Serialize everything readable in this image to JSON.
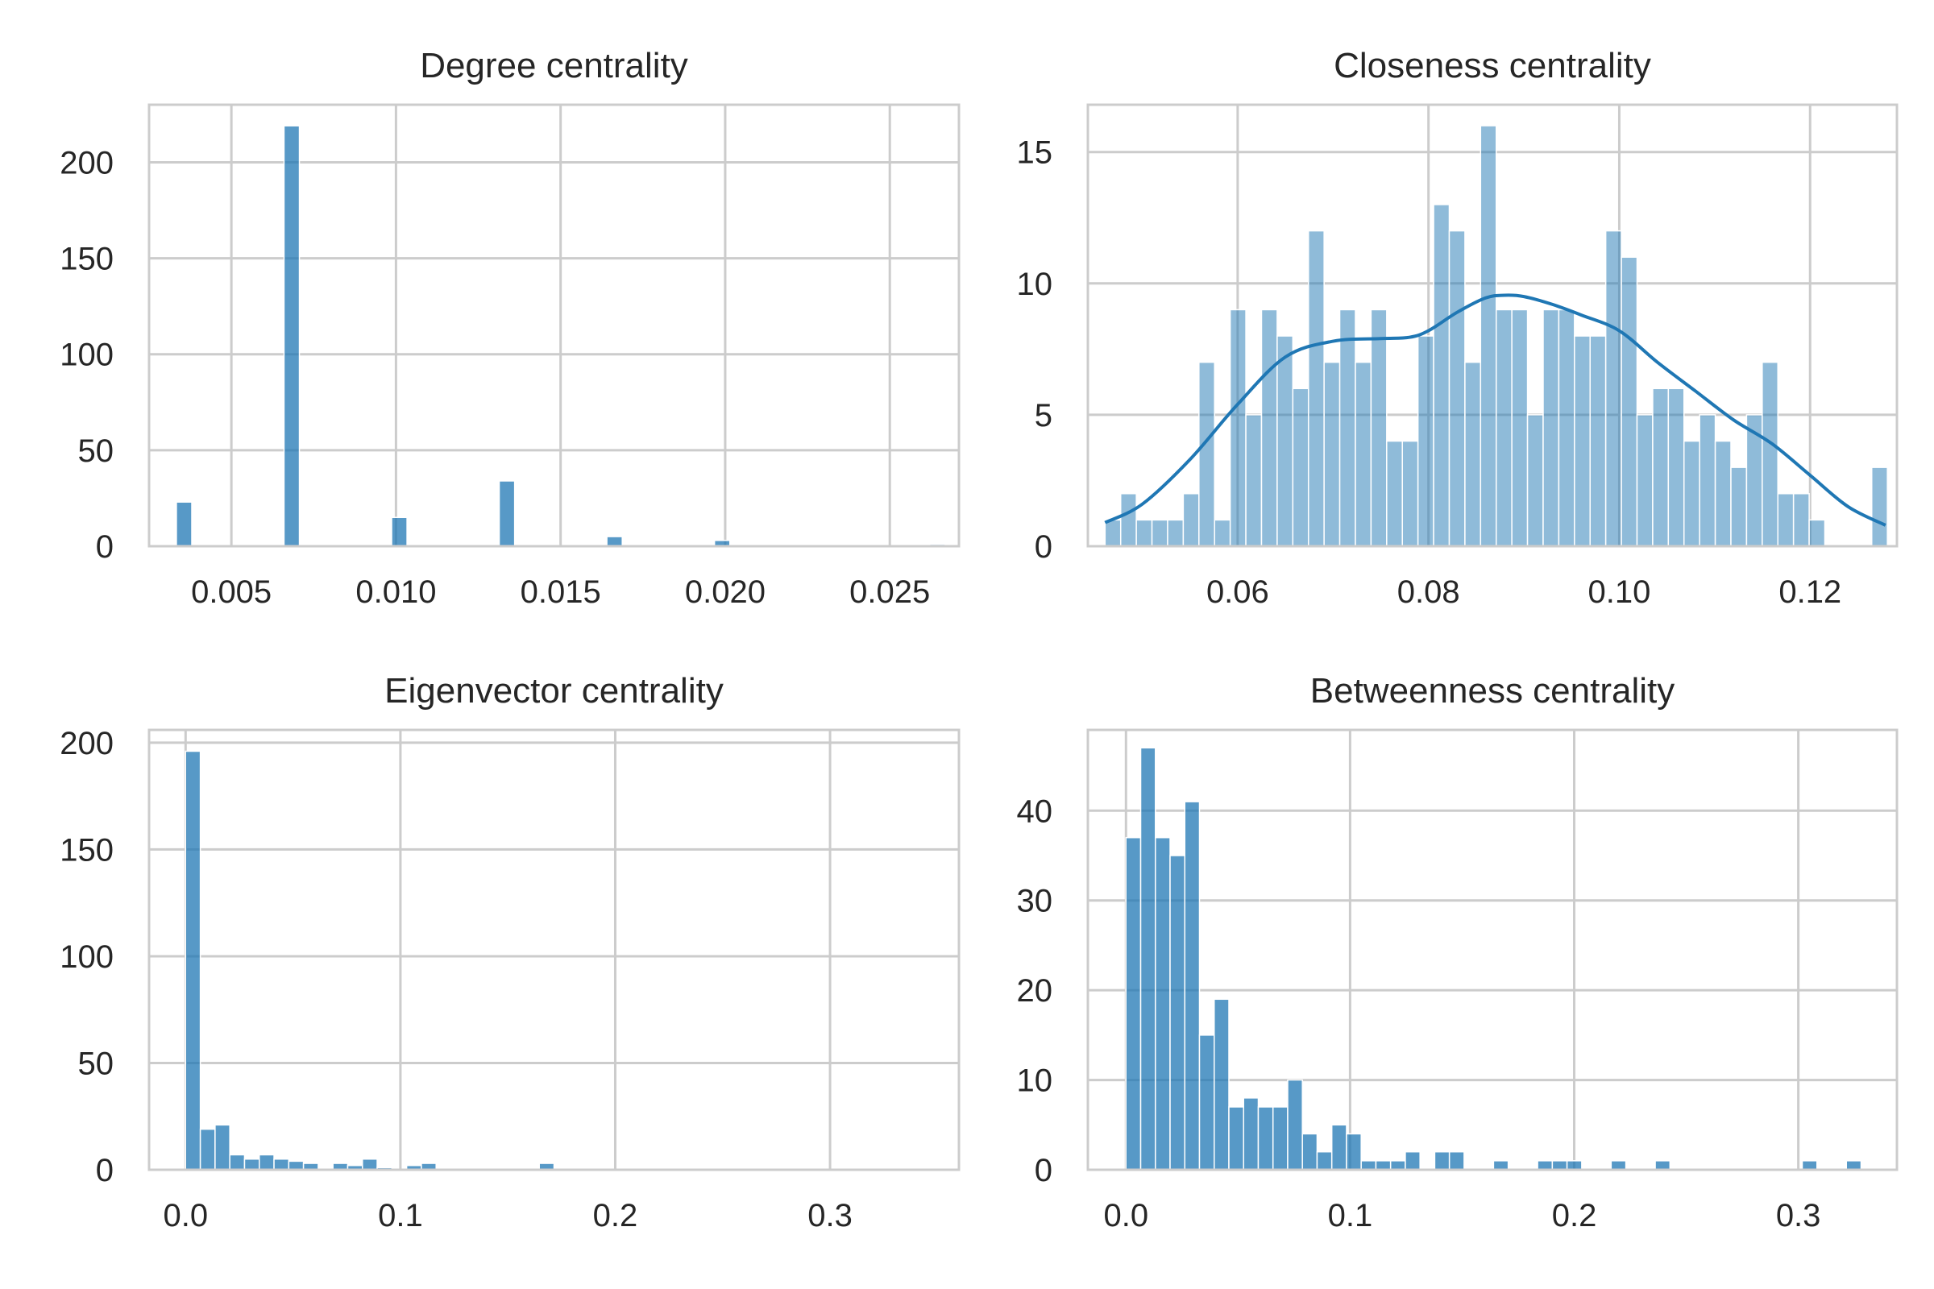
{
  "figure": {
    "layout": "2x2 grid of histograms"
  },
  "chart_data": [
    {
      "type": "histogram",
      "title": "Degree centrality",
      "xlim": [
        0.0025,
        0.0271
      ],
      "ylim": [
        0,
        230
      ],
      "xticks": [
        0.005,
        0.01,
        0.015,
        0.02,
        0.025
      ],
      "xtick_labels": [
        "0.005",
        "0.010",
        "0.015",
        "0.020",
        "0.025"
      ],
      "yticks": [
        0,
        50,
        100,
        150,
        200
      ],
      "ytick_labels": [
        "0",
        "50",
        "100",
        "150",
        "200"
      ],
      "bins": {
        "start": 0.00333,
        "width": 0.000467
      },
      "counts": [
        23,
        0,
        0,
        0,
        0,
        0,
        0,
        219,
        0,
        0,
        0,
        0,
        0,
        0,
        15,
        0,
        0,
        0,
        0,
        0,
        0,
        34,
        0,
        0,
        0,
        0,
        0,
        0,
        5,
        0,
        0,
        0,
        0,
        0,
        0,
        3,
        0,
        0,
        0,
        0,
        0,
        0,
        0,
        0,
        0,
        0,
        0,
        0,
        0,
        1
      ],
      "color": "#1f77b4",
      "bar_opacity": 0.75,
      "grid": true
    },
    {
      "type": "histogram",
      "title": "Closeness centrality",
      "xlim": [
        0.0443,
        0.1291
      ],
      "ylim": [
        0,
        16.8
      ],
      "xticks": [
        0.06,
        0.08,
        0.1,
        0.12
      ],
      "xtick_labels": [
        "0.06",
        "0.08",
        "0.10",
        "0.12"
      ],
      "yticks": [
        0,
        5,
        10,
        15
      ],
      "ytick_labels": [
        "0",
        "5",
        "10",
        "15"
      ],
      "bins": {
        "start": 0.0461,
        "width": 0.00164
      },
      "counts": [
        1,
        2,
        1,
        1,
        1,
        2,
        7,
        1,
        9,
        5,
        9,
        8,
        6,
        12,
        7,
        9,
        7,
        9,
        4,
        4,
        8,
        13,
        12,
        7,
        16,
        9,
        9,
        5,
        9,
        9,
        8,
        8,
        12,
        11,
        5,
        6,
        6,
        4,
        5,
        4,
        3,
        5,
        7,
        2,
        2,
        1,
        0,
        0,
        0,
        3
      ],
      "kde": {
        "x": [
          0.0461,
          0.05,
          0.055,
          0.06,
          0.065,
          0.07,
          0.075,
          0.078,
          0.08,
          0.083,
          0.086,
          0.088,
          0.09,
          0.093,
          0.096,
          0.1,
          0.104,
          0.108,
          0.112,
          0.116,
          0.12,
          0.124,
          0.1279
        ],
        "y": [
          0.9,
          1.6,
          3.3,
          5.4,
          7.2,
          7.8,
          7.9,
          7.95,
          8.2,
          8.9,
          9.45,
          9.55,
          9.5,
          9.2,
          8.8,
          8.2,
          7.0,
          5.9,
          4.8,
          3.9,
          2.7,
          1.5,
          0.8
        ]
      },
      "color": "#1f77b4",
      "bar_opacity": 0.5,
      "grid": true
    },
    {
      "type": "histogram",
      "title": "Eigenvector centrality",
      "xlim": [
        -0.017,
        0.36
      ],
      "ylim": [
        0,
        206
      ],
      "xticks": [
        0.0,
        0.1,
        0.2,
        0.3
      ],
      "xtick_labels": [
        "0.0",
        "0.1",
        "0.2",
        "0.3"
      ],
      "yticks": [
        0,
        50,
        100,
        150,
        200
      ],
      "ytick_labels": [
        "0",
        "50",
        "100",
        "150",
        "200"
      ],
      "bins": {
        "start": 0.0,
        "width": 0.00686
      },
      "counts": [
        196,
        19,
        21,
        7,
        5,
        7,
        5,
        4,
        3,
        0,
        3,
        2,
        5,
        1,
        0,
        2,
        3,
        0,
        0,
        0,
        0,
        0,
        0,
        0,
        3,
        0,
        0,
        0,
        0,
        0,
        0,
        0,
        0,
        0,
        0,
        0,
        0,
        0,
        0,
        0,
        0,
        0,
        0,
        0,
        0,
        0,
        0,
        0,
        0,
        0
      ],
      "color": "#1f77b4",
      "bar_opacity": 0.75,
      "grid": true
    },
    {
      "type": "histogram",
      "title": "Betweenness centrality",
      "xlim": [
        -0.017,
        0.344
      ],
      "ylim": [
        0,
        49
      ],
      "xticks": [
        0.0,
        0.1,
        0.2,
        0.3
      ],
      "xtick_labels": [
        "0.0",
        "0.1",
        "0.2",
        "0.3"
      ],
      "yticks": [
        0,
        10,
        20,
        30,
        40
      ],
      "ytick_labels": [
        "0",
        "10",
        "20",
        "30",
        "40"
      ],
      "bins": {
        "start": 0.0,
        "width": 0.00656
      },
      "counts": [
        37,
        47,
        37,
        35,
        41,
        15,
        19,
        7,
        8,
        7,
        7,
        10,
        4,
        2,
        5,
        4,
        1,
        1,
        1,
        2,
        0,
        2,
        2,
        0,
        0,
        1,
        0,
        0,
        1,
        1,
        1,
        0,
        0,
        1,
        0,
        0,
        1,
        0,
        0,
        0,
        0,
        0,
        0,
        0,
        0,
        0,
        1,
        0,
        0,
        1
      ],
      "color": "#1f77b4",
      "bar_opacity": 0.75,
      "grid": true
    }
  ]
}
